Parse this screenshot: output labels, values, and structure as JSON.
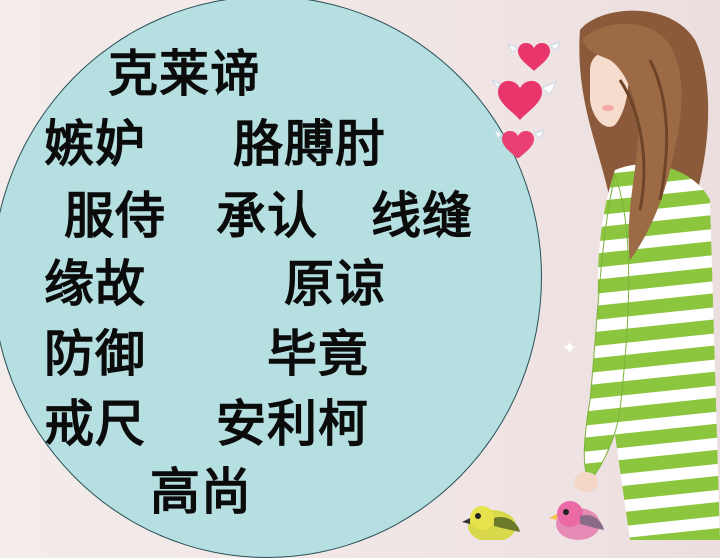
{
  "vocabulary": {
    "row1": [
      "克莱谛"
    ],
    "row2": [
      "嫉妒",
      "胳膊肘"
    ],
    "row3": [
      "服侍",
      "承认",
      "线缝"
    ],
    "row4": [
      "缘故",
      "原谅"
    ],
    "row5": [
      "防御",
      "毕竟"
    ],
    "row6": [
      "戒尺",
      "安利柯"
    ],
    "row7": [
      "高尚"
    ]
  },
  "colors": {
    "ellipse": "#b5dfe0",
    "text": "#0b0b0b",
    "sweater_green": "#8cc63f",
    "heart": "#e8366b"
  },
  "icons": [
    "heart-icon",
    "sparkle-icon",
    "bird-icon"
  ]
}
